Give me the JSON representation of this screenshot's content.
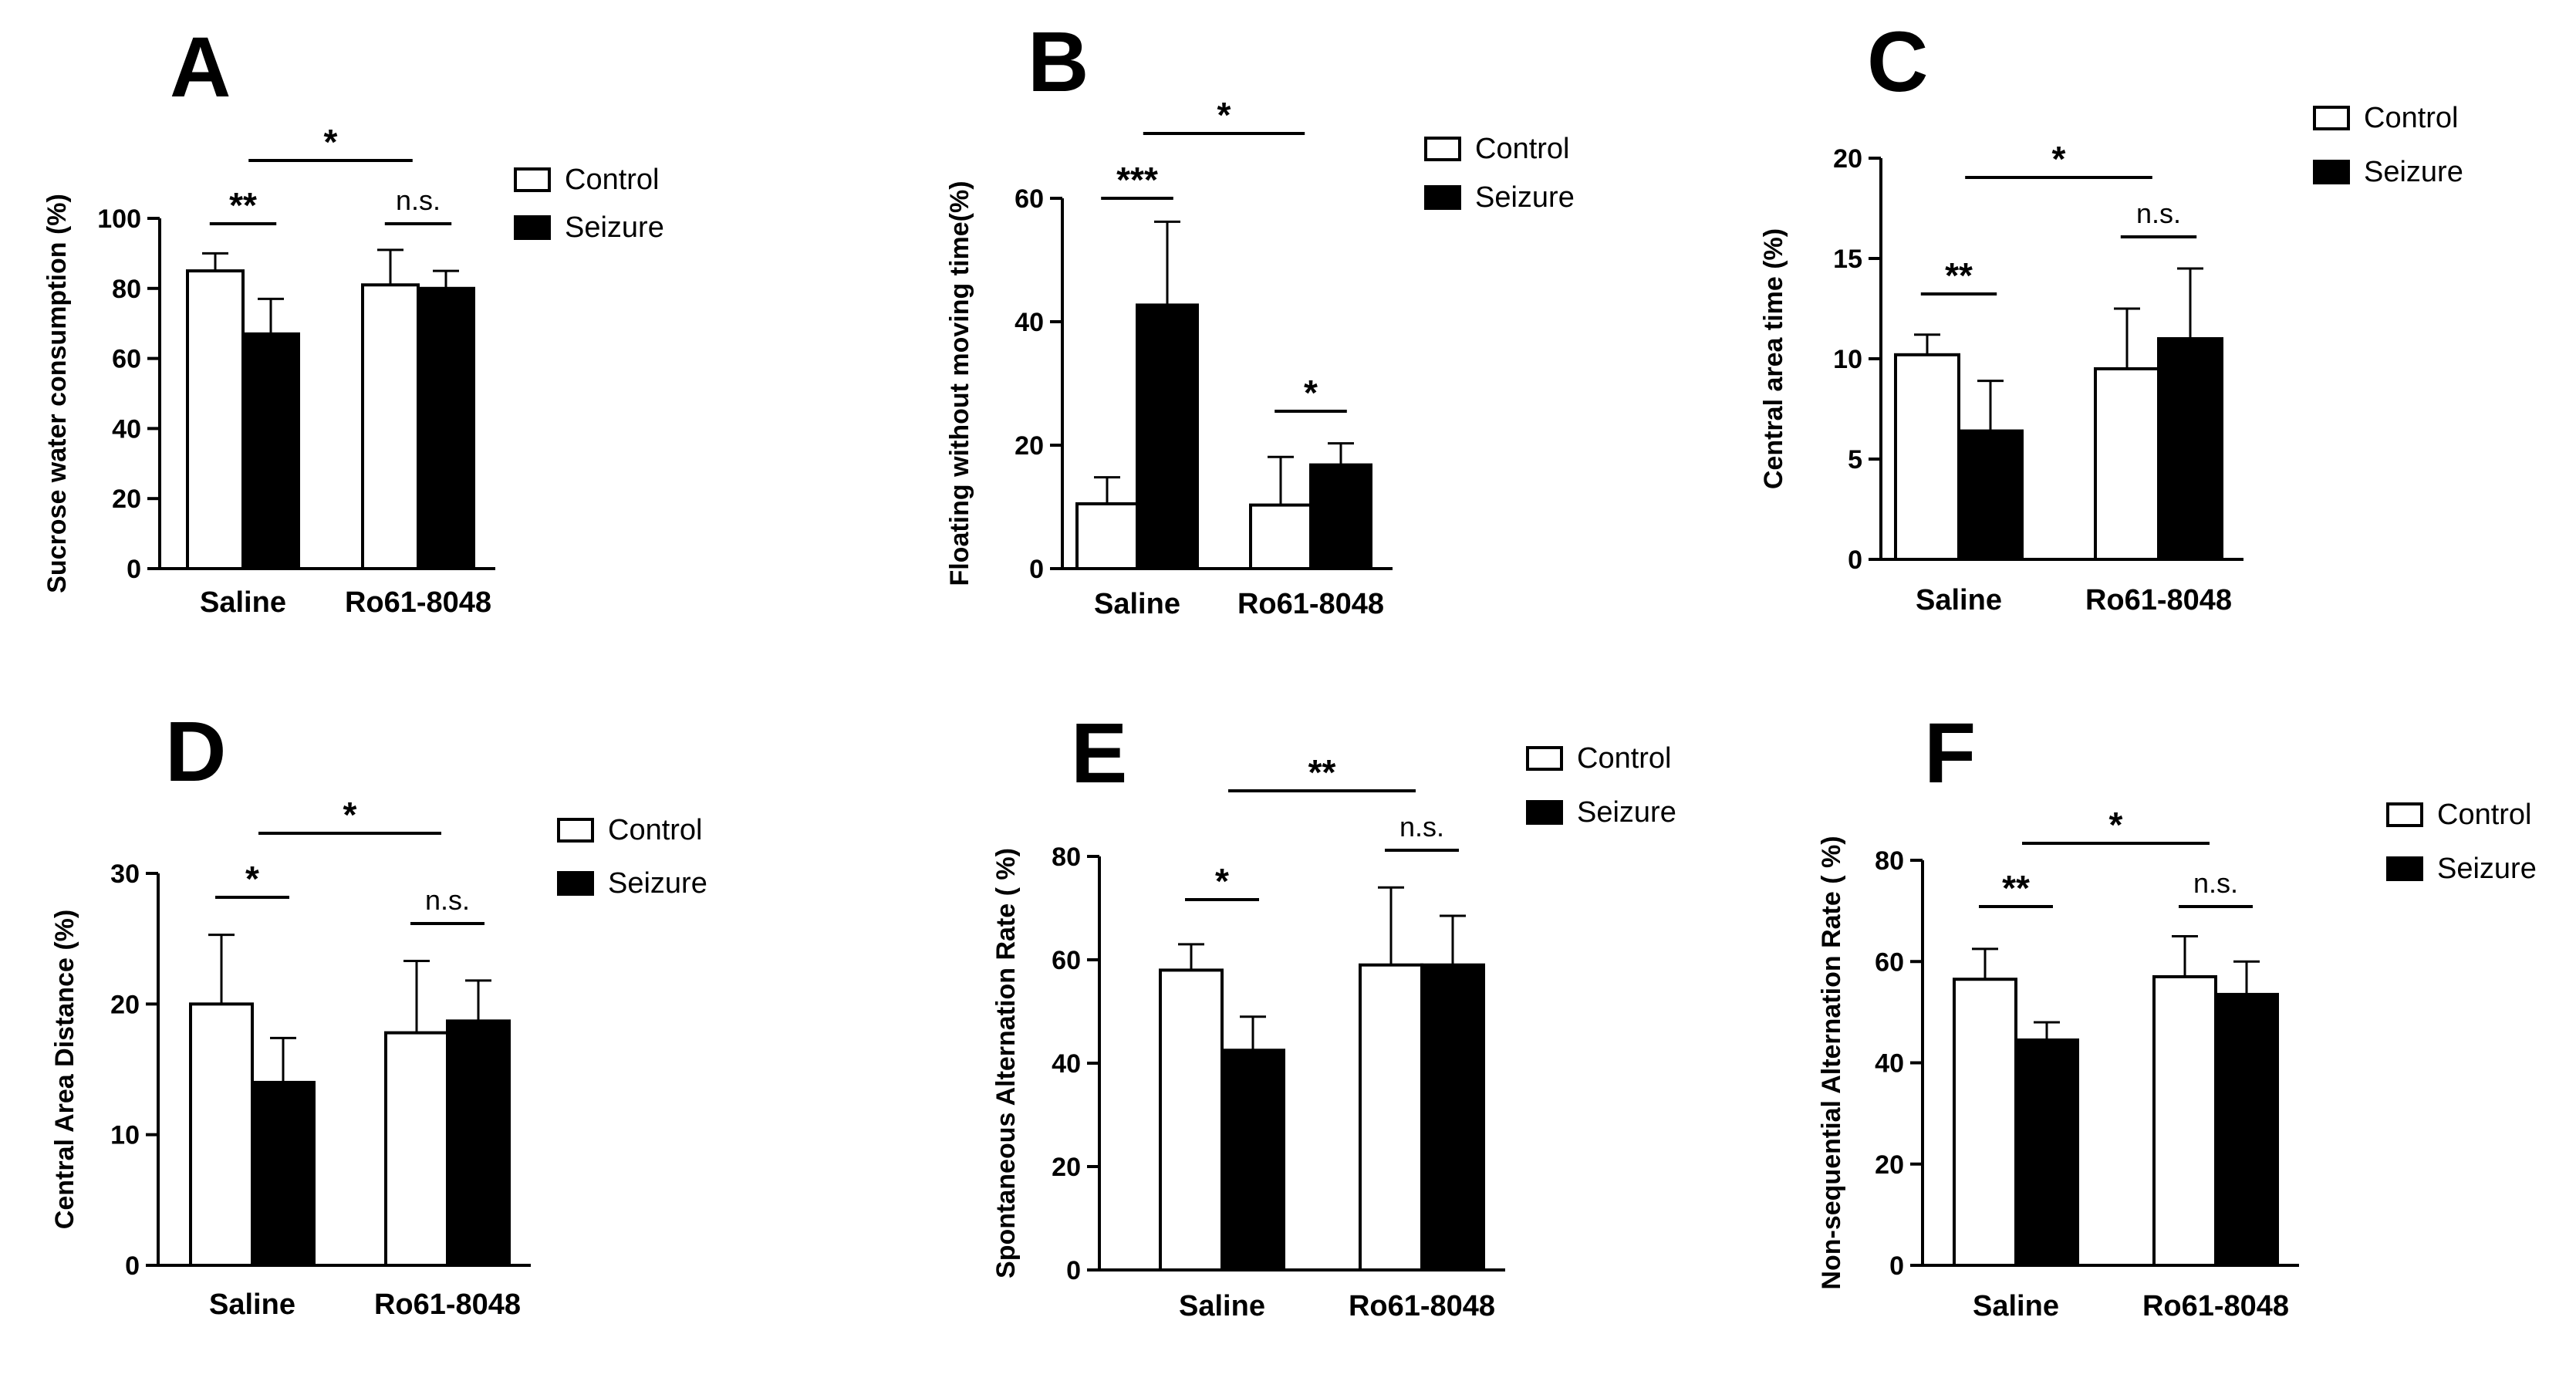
{
  "figure": {
    "legend_labels": [
      "Control",
      "Seizure"
    ],
    "group_colors": [
      "#ffffff",
      "#000000"
    ],
    "axis_color": "#000000"
  },
  "chart_data": [
    {
      "panel": "A",
      "type": "bar",
      "categories": [
        "Saline",
        "Ro61-8048"
      ],
      "series": [
        {
          "name": "Control",
          "values": [
            85,
            81
          ],
          "errors": [
            5,
            10
          ]
        },
        {
          "name": "Seizure",
          "values": [
            67,
            80
          ],
          "errors": [
            10,
            5
          ]
        }
      ],
      "ylabel": "Sucrose water consumption (%)",
      "ylim": [
        0,
        100
      ],
      "yticks": [
        0,
        20,
        40,
        60,
        80,
        100
      ],
      "legend_position": "top-right",
      "annotations": [
        {
          "text": "**",
          "from": [
            0,
            0
          ],
          "to": [
            0,
            1
          ]
        },
        {
          "text": "n.s.",
          "from": [
            1,
            0
          ],
          "to": [
            1,
            1
          ]
        },
        {
          "text": "*",
          "from": [
            0,
            1
          ],
          "to": [
            1,
            0
          ]
        }
      ]
    },
    {
      "panel": "B",
      "type": "bar",
      "categories": [
        "Saline",
        "Ro61-8048"
      ],
      "series": [
        {
          "name": "Control",
          "values": [
            10.5,
            10.3
          ],
          "errors": [
            4.3,
            7.8
          ]
        },
        {
          "name": "Seizure",
          "values": [
            42.7,
            16.8
          ],
          "errors": [
            13.5,
            3.5
          ]
        }
      ],
      "ylabel": "Floating without moving time(%)",
      "ylim": [
        0,
        60
      ],
      "yticks": [
        0,
        20,
        40,
        60
      ],
      "legend_position": "top-right",
      "annotations": [
        {
          "text": "***",
          "from": [
            0,
            0
          ],
          "to": [
            0,
            1
          ]
        },
        {
          "text": "*",
          "from": [
            1,
            0
          ],
          "to": [
            1,
            1
          ]
        },
        {
          "text": "*",
          "from": [
            0,
            1
          ],
          "to": [
            1,
            1
          ]
        }
      ]
    },
    {
      "panel": "C",
      "type": "bar",
      "categories": [
        "Saline",
        "Ro61-8048"
      ],
      "series": [
        {
          "name": "Control",
          "values": [
            10.2,
            9.5
          ],
          "errors": [
            1,
            3
          ]
        },
        {
          "name": "Seizure",
          "values": [
            6.4,
            11
          ],
          "errors": [
            2.5,
            3.5
          ]
        }
      ],
      "ylabel": "Central area time (%)",
      "ylim": [
        0,
        20
      ],
      "yticks": [
        0,
        5,
        10,
        15,
        20
      ],
      "legend_position": "top-right",
      "annotations": [
        {
          "text": "**",
          "from": [
            0,
            0
          ],
          "to": [
            0,
            1
          ]
        },
        {
          "text": "n.s.",
          "from": [
            1,
            0
          ],
          "to": [
            1,
            1
          ]
        },
        {
          "text": "*",
          "from": [
            0,
            1
          ],
          "to": [
            1,
            0
          ]
        }
      ]
    },
    {
      "panel": "D",
      "type": "bar",
      "categories": [
        "Saline",
        "Ro61-8048"
      ],
      "series": [
        {
          "name": "Control",
          "values": [
            20,
            17.8
          ],
          "errors": [
            5.3,
            5.5
          ]
        },
        {
          "name": "Seizure",
          "values": [
            14,
            18.7
          ],
          "errors": [
            3.4,
            3.1
          ]
        }
      ],
      "ylabel": "Central Area Distance (%)",
      "ylim": [
        0,
        30
      ],
      "yticks": [
        0,
        10,
        20,
        30
      ],
      "legend_position": "top-right",
      "annotations": [
        {
          "text": "*",
          "from": [
            0,
            0
          ],
          "to": [
            0,
            1
          ]
        },
        {
          "text": "n.s.",
          "from": [
            1,
            0
          ],
          "to": [
            1,
            1
          ]
        },
        {
          "text": "*",
          "from": [
            0,
            1
          ],
          "to": [
            1,
            0
          ]
        }
      ]
    },
    {
      "panel": "E",
      "type": "bar",
      "categories": [
        "Saline",
        "Ro61-8048"
      ],
      "series": [
        {
          "name": "Control",
          "values": [
            58,
            59
          ],
          "errors": [
            5,
            15
          ]
        },
        {
          "name": "Seizure",
          "values": [
            42.5,
            59
          ],
          "errors": [
            6.5,
            9.5
          ]
        }
      ],
      "ylabel": "Spontaneous Alternation Rate ( %)",
      "ylim": [
        0,
        80
      ],
      "yticks": [
        0,
        20,
        40,
        60,
        80
      ],
      "legend_position": "top-right",
      "annotations": [
        {
          "text": "*",
          "from": [
            0,
            0
          ],
          "to": [
            0,
            1
          ]
        },
        {
          "text": "n.s.",
          "from": [
            1,
            0
          ],
          "to": [
            1,
            1
          ]
        },
        {
          "text": "**",
          "from": [
            0,
            1
          ],
          "to": [
            1,
            0
          ]
        }
      ]
    },
    {
      "panel": "F",
      "type": "bar",
      "categories": [
        "Saline",
        "Ro61-8048"
      ],
      "series": [
        {
          "name": "Control",
          "values": [
            56.5,
            57
          ],
          "errors": [
            6,
            8
          ]
        },
        {
          "name": "Seizure",
          "values": [
            44.5,
            53.5
          ],
          "errors": [
            3.5,
            6.5
          ]
        }
      ],
      "ylabel": "Non-sequential Alternation Rate ( %)",
      "ylim": [
        0,
        80
      ],
      "yticks": [
        0,
        20,
        40,
        60,
        80
      ],
      "legend_position": "top-right",
      "annotations": [
        {
          "text": "**",
          "from": [
            0,
            0
          ],
          "to": [
            0,
            1
          ]
        },
        {
          "text": "n.s.",
          "from": [
            1,
            0
          ],
          "to": [
            1,
            1
          ]
        },
        {
          "text": "*",
          "from": [
            0,
            1
          ],
          "to": [
            1,
            0
          ]
        }
      ]
    }
  ]
}
